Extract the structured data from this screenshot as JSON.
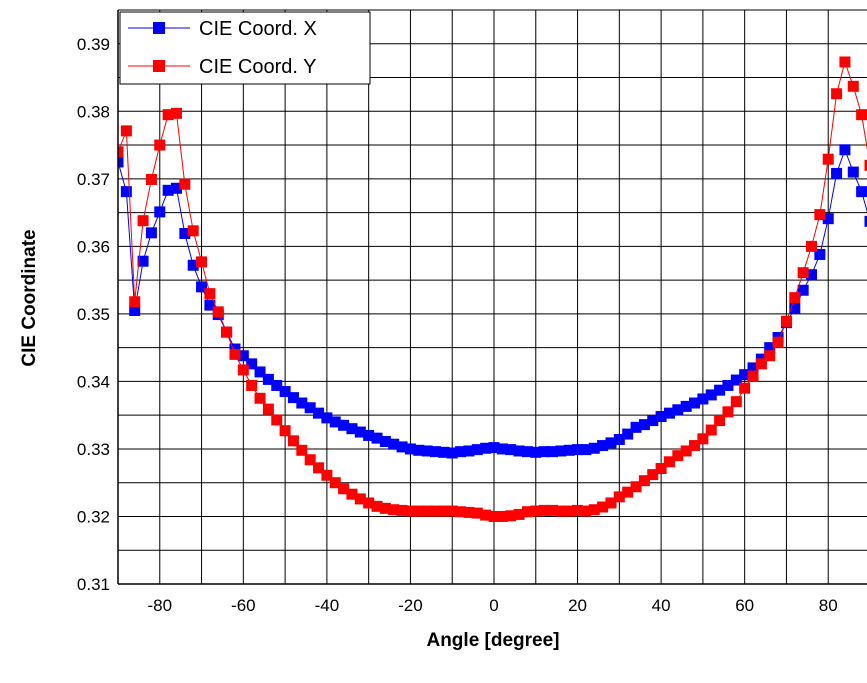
{
  "chart_data": {
    "type": "line",
    "xlabel": "Angle [degree]",
    "ylabel": "CIE  Coordinate",
    "xlim": [
      -90,
      90
    ],
    "ylim": [
      0.31,
      0.395
    ],
    "x_ticks": [
      "-80",
      "-60",
      "-40",
      "-20",
      "0",
      "20",
      "40",
      "60",
      "80"
    ],
    "y_ticks": [
      "0.31",
      "0.32",
      "0.33",
      "0.34",
      "0.35",
      "0.36",
      "0.37",
      "0.38",
      "0.39"
    ],
    "grid": true,
    "legend_position": "top-left",
    "x": [
      -90,
      -88,
      -86,
      -84,
      -82,
      -80,
      -78,
      -76,
      -74,
      -72,
      -70,
      -68,
      -66,
      -64,
      -62,
      -60,
      -58,
      -56,
      -54,
      -52,
      -50,
      -48,
      -46,
      -44,
      -42,
      -40,
      -38,
      -36,
      -34,
      -32,
      -30,
      -28,
      -26,
      -24,
      -22,
      -20,
      -18,
      -16,
      -14,
      -12,
      -10,
      -8,
      -6,
      -4,
      -2,
      0,
      2,
      4,
      6,
      8,
      10,
      12,
      14,
      16,
      18,
      20,
      22,
      24,
      26,
      28,
      30,
      32,
      34,
      36,
      38,
      40,
      42,
      44,
      46,
      48,
      50,
      52,
      54,
      56,
      58,
      60,
      62,
      64,
      66,
      68,
      70,
      72,
      74,
      76,
      78,
      80,
      82,
      84,
      86,
      88,
      90
    ],
    "series": [
      {
        "name": "CIE Coord. X",
        "color": "#0000ff",
        "values": [
          0.3725,
          0.3681,
          0.3505,
          0.3578,
          0.362,
          0.3651,
          0.3683,
          0.3686,
          0.3619,
          0.3572,
          0.354,
          0.3513,
          0.3499,
          0.3473,
          0.3448,
          0.3438,
          0.3426,
          0.3414,
          0.3403,
          0.3394,
          0.3385,
          0.3376,
          0.3368,
          0.3361,
          0.3353,
          0.3346,
          0.334,
          0.3335,
          0.333,
          0.3325,
          0.332,
          0.3316,
          0.3311,
          0.3307,
          0.3303,
          0.33,
          0.3298,
          0.3297,
          0.3296,
          0.3295,
          0.3294,
          0.3296,
          0.3297,
          0.3299,
          0.3301,
          0.3302,
          0.33,
          0.3299,
          0.3297,
          0.3296,
          0.3295,
          0.3296,
          0.3296,
          0.3297,
          0.3298,
          0.3299,
          0.3299,
          0.3301,
          0.3305,
          0.3309,
          0.3314,
          0.3322,
          0.3332,
          0.3336,
          0.3342,
          0.3348,
          0.3353,
          0.3358,
          0.3363,
          0.3368,
          0.3374,
          0.338,
          0.3387,
          0.3394,
          0.3402,
          0.341,
          0.342,
          0.3433,
          0.345,
          0.3465,
          0.3487,
          0.3508,
          0.3535,
          0.3558,
          0.3588,
          0.3641,
          0.3708,
          0.3743,
          0.371,
          0.3681,
          0.3637
        ]
      },
      {
        "name": "CIE Coord. Y",
        "color": "#ff0000",
        "values": [
          0.374,
          0.3771,
          0.3518,
          0.3638,
          0.3699,
          0.375,
          0.3795,
          0.3797,
          0.3692,
          0.3623,
          0.3577,
          0.353,
          0.3503,
          0.3473,
          0.344,
          0.3417,
          0.3394,
          0.3375,
          0.3359,
          0.3343,
          0.3327,
          0.3312,
          0.3298,
          0.3284,
          0.3272,
          0.3261,
          0.325,
          0.3241,
          0.3233,
          0.3226,
          0.322,
          0.3215,
          0.3212,
          0.321,
          0.3209,
          0.3208,
          0.3208,
          0.3208,
          0.3208,
          0.3208,
          0.3208,
          0.3207,
          0.3206,
          0.3205,
          0.3202,
          0.32,
          0.32,
          0.3201,
          0.3203,
          0.3207,
          0.3208,
          0.3209,
          0.3209,
          0.3208,
          0.3208,
          0.3209,
          0.3208,
          0.321,
          0.3214,
          0.322,
          0.3229,
          0.3236,
          0.3244,
          0.3253,
          0.3262,
          0.3271,
          0.3281,
          0.329,
          0.3297,
          0.3305,
          0.3315,
          0.3328,
          0.3342,
          0.3355,
          0.337,
          0.339,
          0.3408,
          0.3426,
          0.3438,
          0.3458,
          0.3489,
          0.3524,
          0.3561,
          0.36,
          0.3647,
          0.3729,
          0.3826,
          0.3873,
          0.3837,
          0.3795,
          0.372
        ]
      }
    ]
  }
}
